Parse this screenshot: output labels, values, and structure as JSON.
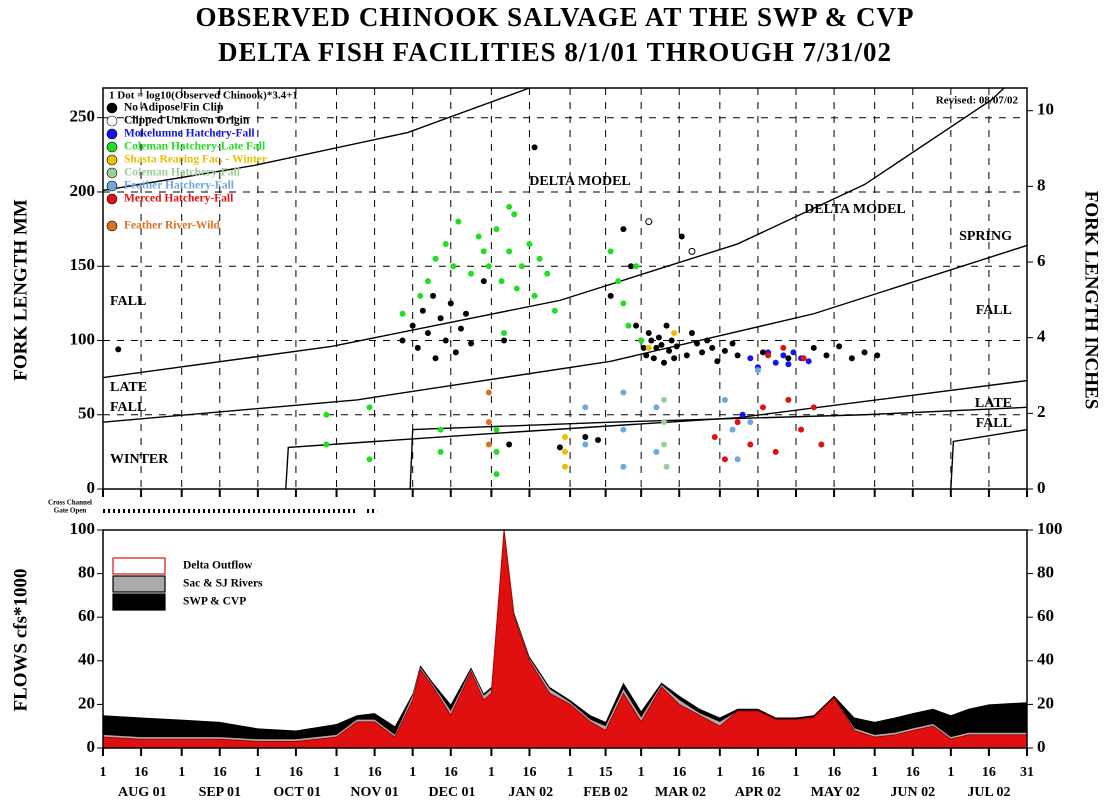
{
  "chart_data": [
    {
      "type": "scatter",
      "title": "OBSERVED CHINOOK SALVAGE AT THE SWP & CVP",
      "subtitle": "DELTA FISH FACILITIES 8/1/01 THROUGH 7/31/02",
      "ylabel": "FORK LENGTH MM",
      "y2label": "FORK LENGTH INCHES",
      "legend_title": "1 Dot = log10(Observed Chinook)*3.4+1",
      "revised": "Revised: 08/07/02",
      "annotations": [
        "DELTA MODEL",
        "DELTA MODEL",
        "FALL",
        "LATE",
        "FALL",
        "WINTER",
        "SPRING",
        "FALL",
        "LATE",
        "FALL"
      ],
      "gate_label": [
        "Cross Channel",
        "Gate Open"
      ],
      "gate_open": [
        [
          0,
          100
        ],
        [
          104,
          108
        ]
      ],
      "xlim": [
        0,
        364
      ],
      "ylim": [
        0,
        270
      ],
      "yticks": [
        0,
        50,
        100,
        150,
        200,
        250
      ],
      "y2lim": [
        0,
        10.6
      ],
      "y2ticks": [
        0,
        2,
        4,
        6,
        8,
        10
      ],
      "grid": true,
      "model_curves": [
        {
          "x": [
            0,
            60,
            120,
            168
          ],
          "y": [
            201,
            218,
            240,
            270
          ]
        },
        {
          "x": [
            0,
            90,
            180,
            250,
            300,
            350,
            355
          ],
          "y": [
            75,
            96,
            127,
            165,
            205,
            262,
            270
          ]
        },
        {
          "x": [
            0,
            100,
            200,
            280,
            364
          ],
          "y": [
            45,
            60,
            86,
            118,
            164
          ]
        },
        {
          "x": [
            72,
            73,
            150,
            250,
            364
          ],
          "y": [
            0,
            28,
            37,
            48,
            73
          ]
        },
        {
          "x": [
            121,
            122,
            200,
            300,
            364
          ],
          "y": [
            0,
            40,
            45,
            50,
            55
          ]
        },
        {
          "x": [
            334,
            335,
            364
          ],
          "y": [
            0,
            32,
            40
          ]
        }
      ],
      "series": [
        {
          "name": "No Adipose Fin Clip",
          "color": "#000000",
          "x": [
            6,
            118,
            122,
            124,
            126,
            128,
            130,
            131,
            133,
            135,
            137,
            139,
            141,
            143,
            145,
            150,
            158,
            170,
            200,
            205,
            208,
            210,
            212,
            213,
            214,
            215,
            216,
            217,
            218,
            219,
            220,
            221,
            222,
            223,
            224,
            225,
            226,
            228,
            230,
            232,
            234,
            236,
            238,
            240,
            242,
            245,
            248,
            250,
            260,
            270,
            280,
            285,
            290,
            295,
            300,
            305,
            160,
            180,
            190,
            195
          ],
          "y": [
            94,
            100,
            110,
            95,
            120,
            105,
            130,
            88,
            115,
            100,
            125,
            92,
            108,
            118,
            98,
            140,
            100,
            230,
            130,
            175,
            150,
            110,
            100,
            95,
            90,
            105,
            100,
            88,
            95,
            102,
            97,
            85,
            110,
            93,
            100,
            88,
            96,
            170,
            90,
            105,
            98,
            92,
            100,
            95,
            86,
            93,
            98,
            90,
            92,
            88,
            95,
            90,
            96,
            88,
            92,
            90,
            30,
            28,
            35,
            33
          ]
        },
        {
          "name": "Clipped Unknown Origin",
          "color": "#ffffff",
          "x": [
            215,
            232
          ],
          "y": [
            180,
            160
          ]
        },
        {
          "name": "Mokelumne Hatchery-Fall",
          "color": "#1515e6",
          "x": [
            255,
            258,
            262,
            265,
            268,
            270,
            272,
            275,
            278,
            252
          ],
          "y": [
            88,
            82,
            92,
            85,
            90,
            84,
            92,
            88,
            86,
            50
          ]
        },
        {
          "name": "Coleman Hatchery-Late Fall",
          "color": "#22dd22",
          "x": [
            118,
            125,
            128,
            131,
            135,
            138,
            140,
            145,
            148,
            150,
            152,
            155,
            157,
            160,
            162,
            165,
            168,
            170,
            172,
            175,
            178,
            160,
            158,
            163,
            200,
            203,
            205,
            207,
            210,
            212,
            88,
            88,
            105,
            105,
            133,
            133,
            155,
            155,
            155
          ],
          "y": [
            118,
            130,
            140,
            155,
            165,
            150,
            180,
            145,
            170,
            160,
            150,
            175,
            140,
            160,
            185,
            150,
            165,
            130,
            155,
            145,
            120,
            190,
            105,
            135,
            160,
            140,
            125,
            110,
            150,
            100,
            50,
            30,
            55,
            20,
            40,
            25,
            40,
            25,
            10
          ]
        },
        {
          "name": "Shasta Rearing Fac. - Winter",
          "color": "#e8c000",
          "x": [
            182,
            182,
            182,
            215,
            225
          ],
          "y": [
            35,
            25,
            15,
            95,
            105
          ]
        },
        {
          "name": "Coleman Hatchery-Fall",
          "color": "#9acd9a",
          "x": [
            221,
            221,
            221,
            222
          ],
          "y": [
            60,
            45,
            30,
            15
          ]
        },
        {
          "name": "Feather Hatchery-Fall",
          "color": "#6fa8dc",
          "x": [
            190,
            190,
            205,
            205,
            205,
            218,
            218,
            245,
            248,
            250,
            255,
            258
          ],
          "y": [
            55,
            30,
            65,
            40,
            15,
            55,
            25,
            60,
            40,
            20,
            45,
            80
          ]
        },
        {
          "name": "Merced Hatchery-Fall",
          "color": "#e01010",
          "x": [
            241,
            245,
            250,
            255,
            260,
            265,
            270,
            275,
            280,
            283,
            262,
            268,
            276
          ],
          "y": [
            35,
            20,
            45,
            30,
            55,
            25,
            60,
            40,
            55,
            30,
            90,
            95,
            88
          ]
        },
        {
          "name": "Feather River-Wild",
          "color": "#e07020",
          "x": [
            152,
            152,
            152
          ],
          "y": [
            65,
            45,
            30
          ]
        }
      ]
    },
    {
      "type": "area",
      "ylabel": "FLOWS cfs*1000",
      "xlim": [
        0,
        364
      ],
      "ylim": [
        0,
        100
      ],
      "yticks": [
        0,
        20,
        40,
        60,
        80,
        100
      ],
      "y2lim": [
        0,
        100
      ],
      "y2ticks": [
        0,
        20,
        40,
        60,
        80,
        100
      ],
      "xticks": [
        {
          "value": 0,
          "label": "1"
        },
        {
          "value": 15,
          "label": "16"
        },
        {
          "value": 31,
          "label": "1"
        },
        {
          "value": 46,
          "label": "16"
        },
        {
          "value": 61,
          "label": "1"
        },
        {
          "value": 76,
          "label": "16"
        },
        {
          "value": 92,
          "label": "1"
        },
        {
          "value": 107,
          "label": "16"
        },
        {
          "value": 122,
          "label": "1"
        },
        {
          "value": 137,
          "label": "16"
        },
        {
          "value": 153,
          "label": "1"
        },
        {
          "value": 168,
          "label": "16"
        },
        {
          "value": 184,
          "label": "1"
        },
        {
          "value": 198,
          "label": "15"
        },
        {
          "value": 212,
          "label": "1"
        },
        {
          "value": 227,
          "label": "16"
        },
        {
          "value": 243,
          "label": "1"
        },
        {
          "value": 258,
          "label": "16"
        },
        {
          "value": 273,
          "label": "1"
        },
        {
          "value": 288,
          "label": "16"
        },
        {
          "value": 304,
          "label": "1"
        },
        {
          "value": 319,
          "label": "16"
        },
        {
          "value": 334,
          "label": "1"
        },
        {
          "value": 349,
          "label": "16"
        },
        {
          "value": 364,
          "label": "31"
        }
      ],
      "month_labels": [
        "AUG 01",
        "SEP 01",
        "OCT 01",
        "NOV 01",
        "DEC 01",
        "JAN 02",
        "FEB 02",
        "MAR 02",
        "APR 02",
        "MAY 02",
        "JUN 02",
        "JUL 02"
      ],
      "x": [
        0,
        15,
        31,
        46,
        61,
        76,
        92,
        100,
        107,
        115,
        122,
        125,
        130,
        137,
        145,
        150,
        153,
        158,
        162,
        168,
        176,
        184,
        192,
        198,
        205,
        212,
        220,
        227,
        235,
        243,
        250,
        258,
        265,
        273,
        280,
        288,
        296,
        304,
        312,
        319,
        327,
        334,
        341,
        349,
        364
      ],
      "series": [
        {
          "name": "SWP & CVP",
          "color": "#000000",
          "values": [
            15,
            14,
            13,
            12,
            9,
            8,
            11,
            15,
            16,
            10,
            25,
            38,
            30,
            20,
            37,
            25,
            28,
            100,
            62,
            42,
            28,
            22,
            15,
            12,
            30,
            17,
            30,
            24,
            18,
            14,
            18,
            18,
            14,
            14,
            15,
            24,
            14,
            12,
            14,
            16,
            18,
            15,
            18,
            20,
            21
          ]
        },
        {
          "name": "Sac & SJ Rivers",
          "color": "#aaaaaa",
          "values": [
            6,
            5,
            5,
            5,
            4,
            4,
            6,
            13,
            13,
            6,
            24,
            37,
            29,
            17,
            36,
            24,
            27,
            100,
            61,
            41,
            27,
            21,
            13,
            10,
            27,
            14,
            29,
            22,
            16,
            12,
            17,
            17,
            13,
            13,
            14,
            23,
            9,
            6,
            7,
            9,
            11,
            5,
            7,
            7,
            7
          ]
        },
        {
          "name": "Delta Outflow",
          "color": "#e01010",
          "values": [
            5,
            4,
            4,
            4,
            3,
            3,
            5,
            12,
            12,
            5,
            22,
            36,
            28,
            15,
            35,
            22,
            25,
            100,
            60,
            40,
            25,
            20,
            12,
            8,
            25,
            12,
            28,
            20,
            15,
            10,
            17,
            17,
            13,
            13,
            14,
            23,
            8,
            5,
            6,
            8,
            10,
            4,
            6,
            6,
            6
          ]
        }
      ]
    }
  ]
}
